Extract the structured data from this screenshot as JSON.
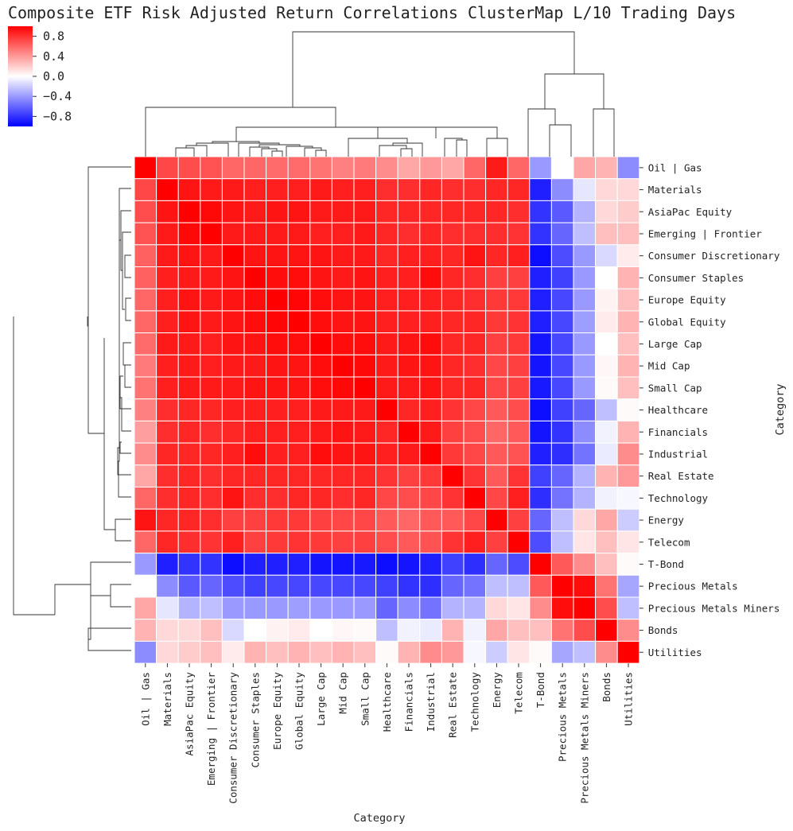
{
  "chart_data": {
    "type": "heatmap",
    "title": "Composite ETF Risk Adjusted Return Correlations ClusterMap L/10 Trading Days",
    "xlabel": "Category",
    "ylabel": "Category",
    "vmin": -1,
    "vmax": 1,
    "colormap": [
      "#0000ff",
      "#ffffff",
      "#ff0000"
    ],
    "colorbar_ticks": [
      0.8,
      0.4,
      0.0,
      -0.4,
      -0.8
    ],
    "colorbar_tick_labels": [
      "0.8",
      "0.4",
      "0.0",
      "−0.4",
      "−0.8"
    ],
    "categories": [
      "Oil | Gas",
      "Materials",
      "AsiaPac Equity",
      "Emerging | Frontier",
      "Consumer Discretionary",
      "Consumer Staples",
      "Europe Equity",
      "Global Equity",
      "Large Cap",
      "Mid Cap",
      "Small Cap",
      "Healthcare",
      "Financials",
      "Industrial",
      "Real Estate",
      "Technology",
      "Energy",
      "Telecom",
      "T-Bond",
      "Precious Metals",
      "Precious Metals Miners",
      "Bonds",
      "Utilities"
    ],
    "matrix": [
      [
        1.0,
        0.72,
        0.7,
        0.68,
        0.6,
        0.6,
        0.58,
        0.58,
        0.55,
        0.5,
        0.52,
        0.45,
        0.35,
        0.4,
        0.35,
        0.6,
        0.9,
        0.6,
        -0.4,
        0.0,
        0.35,
        0.3,
        -0.45
      ],
      [
        0.72,
        1.0,
        0.92,
        0.9,
        0.9,
        0.88,
        0.88,
        0.88,
        0.9,
        0.88,
        0.88,
        0.82,
        0.82,
        0.85,
        0.82,
        0.82,
        0.85,
        0.85,
        -0.88,
        -0.45,
        -0.1,
        0.15,
        0.15
      ],
      [
        0.7,
        0.92,
        1.0,
        0.97,
        0.92,
        0.9,
        0.92,
        0.92,
        0.9,
        0.9,
        0.9,
        0.85,
        0.85,
        0.85,
        0.85,
        0.85,
        0.85,
        0.82,
        -0.8,
        -0.65,
        -0.3,
        0.15,
        0.2
      ],
      [
        0.68,
        0.9,
        0.97,
        1.0,
        0.9,
        0.9,
        0.9,
        0.9,
        0.88,
        0.88,
        0.9,
        0.85,
        0.82,
        0.85,
        0.82,
        0.82,
        0.82,
        0.8,
        -0.8,
        -0.6,
        -0.25,
        0.25,
        0.25
      ],
      [
        0.62,
        0.9,
        0.92,
        0.9,
        1.0,
        0.92,
        0.92,
        0.92,
        0.92,
        0.9,
        0.9,
        0.85,
        0.88,
        0.88,
        0.85,
        0.92,
        0.85,
        0.88,
        -0.95,
        -0.7,
        -0.4,
        -0.15,
        0.08
      ],
      [
        0.62,
        0.88,
        0.9,
        0.9,
        0.92,
        1.0,
        0.95,
        0.95,
        0.92,
        0.9,
        0.92,
        0.88,
        0.88,
        0.95,
        0.85,
        0.82,
        0.75,
        0.75,
        -0.88,
        -0.75,
        -0.4,
        0.0,
        0.3
      ],
      [
        0.6,
        0.88,
        0.92,
        0.9,
        0.92,
        0.95,
        1.0,
        0.98,
        0.95,
        0.92,
        0.92,
        0.88,
        0.88,
        0.88,
        0.85,
        0.82,
        0.78,
        0.78,
        -0.88,
        -0.72,
        -0.4,
        0.05,
        0.25
      ],
      [
        0.6,
        0.88,
        0.92,
        0.9,
        0.92,
        0.95,
        0.98,
        1.0,
        0.95,
        0.92,
        0.92,
        0.88,
        0.88,
        0.88,
        0.85,
        0.85,
        0.78,
        0.8,
        -0.88,
        -0.72,
        -0.38,
        0.08,
        0.3
      ],
      [
        0.58,
        0.9,
        0.9,
        0.88,
        0.92,
        0.92,
        0.95,
        0.95,
        1.0,
        0.95,
        0.95,
        0.9,
        0.92,
        0.95,
        0.85,
        0.85,
        0.75,
        0.78,
        -0.92,
        -0.72,
        -0.4,
        0.0,
        0.25
      ],
      [
        0.52,
        0.88,
        0.9,
        0.88,
        0.9,
        0.9,
        0.92,
        0.92,
        0.95,
        1.0,
        0.97,
        0.9,
        0.92,
        0.92,
        0.85,
        0.82,
        0.72,
        0.75,
        -0.92,
        -0.72,
        -0.4,
        0.03,
        0.3
      ],
      [
        0.55,
        0.88,
        0.9,
        0.9,
        0.9,
        0.92,
        0.92,
        0.92,
        0.95,
        0.97,
        1.0,
        0.9,
        0.9,
        0.92,
        0.85,
        0.85,
        0.72,
        0.75,
        -0.9,
        -0.72,
        -0.4,
        0.02,
        0.25
      ],
      [
        0.5,
        0.82,
        0.85,
        0.85,
        0.88,
        0.88,
        0.88,
        0.88,
        0.9,
        0.9,
        0.9,
        1.0,
        0.85,
        0.88,
        0.8,
        0.72,
        0.65,
        0.7,
        -0.95,
        -0.75,
        -0.6,
        -0.25,
        0.02
      ],
      [
        0.38,
        0.82,
        0.85,
        0.82,
        0.85,
        0.88,
        0.88,
        0.88,
        0.9,
        0.92,
        0.9,
        0.85,
        1.0,
        0.9,
        0.75,
        0.7,
        0.6,
        0.65,
        -0.92,
        -0.8,
        -0.45,
        -0.05,
        0.3
      ],
      [
        0.45,
        0.85,
        0.85,
        0.85,
        0.88,
        0.95,
        0.88,
        0.88,
        0.95,
        0.92,
        0.92,
        0.88,
        0.9,
        1.0,
        0.78,
        0.72,
        0.65,
        0.68,
        -0.88,
        -0.82,
        -0.55,
        -0.08,
        0.45
      ],
      [
        0.35,
        0.82,
        0.85,
        0.82,
        0.85,
        0.85,
        0.85,
        0.85,
        0.85,
        0.85,
        0.85,
        0.8,
        0.75,
        0.78,
        1.0,
        0.8,
        0.65,
        0.8,
        -0.75,
        -0.6,
        -0.3,
        0.3,
        0.4
      ],
      [
        0.6,
        0.82,
        0.85,
        0.82,
        0.92,
        0.82,
        0.82,
        0.85,
        0.85,
        0.82,
        0.85,
        0.72,
        0.7,
        0.72,
        0.8,
        1.0,
        0.72,
        0.88,
        -0.82,
        -0.55,
        -0.3,
        -0.05,
        -0.03
      ],
      [
        0.92,
        0.85,
        0.85,
        0.82,
        0.75,
        0.75,
        0.78,
        0.78,
        0.75,
        0.72,
        0.72,
        0.65,
        0.6,
        0.65,
        0.65,
        0.72,
        1.0,
        0.75,
        -0.6,
        -0.25,
        0.15,
        0.35,
        -0.2
      ],
      [
        0.6,
        0.85,
        0.82,
        0.8,
        0.88,
        0.75,
        0.78,
        0.8,
        0.78,
        0.75,
        0.75,
        0.7,
        0.65,
        0.68,
        0.8,
        0.88,
        0.75,
        1.0,
        -0.7,
        -0.25,
        0.1,
        0.25,
        0.1
      ],
      [
        -0.4,
        -0.88,
        -0.8,
        -0.8,
        -0.95,
        -0.88,
        -0.88,
        -0.88,
        -0.92,
        -0.92,
        -0.9,
        -0.95,
        -0.92,
        -0.88,
        -0.75,
        -0.82,
        -0.6,
        -0.7,
        1.0,
        0.65,
        0.45,
        0.25,
        0.02
      ],
      [
        0.0,
        -0.45,
        -0.65,
        -0.6,
        -0.7,
        -0.75,
        -0.72,
        -0.72,
        -0.72,
        -0.72,
        -0.72,
        -0.75,
        -0.8,
        -0.82,
        -0.6,
        -0.55,
        -0.25,
        -0.25,
        0.65,
        1.0,
        0.95,
        0.55,
        -0.35
      ],
      [
        0.35,
        -0.1,
        -0.3,
        -0.25,
        -0.4,
        -0.4,
        -0.4,
        -0.38,
        -0.4,
        -0.4,
        -0.4,
        -0.6,
        -0.45,
        -0.55,
        -0.3,
        -0.3,
        0.15,
        0.1,
        0.45,
        0.95,
        1.0,
        0.7,
        -0.25
      ],
      [
        0.3,
        0.15,
        0.15,
        0.25,
        -0.15,
        0.0,
        0.05,
        0.08,
        0.0,
        0.03,
        0.02,
        -0.25,
        -0.05,
        -0.08,
        0.3,
        -0.05,
        0.35,
        0.25,
        0.25,
        0.55,
        0.7,
        1.0,
        0.45
      ],
      [
        -0.45,
        0.15,
        0.2,
        0.25,
        0.08,
        0.3,
        0.25,
        0.3,
        0.25,
        0.3,
        0.25,
        0.02,
        0.3,
        0.45,
        0.4,
        -0.03,
        -0.2,
        0.1,
        0.02,
        -0.35,
        -0.25,
        0.45,
        1.0
      ]
    ]
  }
}
